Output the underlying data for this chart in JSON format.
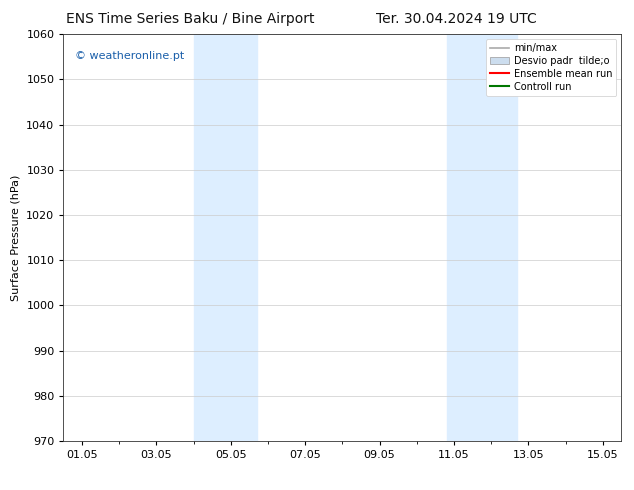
{
  "title_left": "ENS Time Series Baku / Bine Airport",
  "title_right": "Ter. 30.04.2024 19 UTC",
  "ylabel": "Surface Pressure (hPa)",
  "ylim": [
    970,
    1060
  ],
  "yticks": [
    970,
    980,
    990,
    1000,
    1010,
    1020,
    1030,
    1040,
    1050,
    1060
  ],
  "xlim_start": 0.5,
  "xlim_end": 15.5,
  "xtick_positions": [
    1,
    3,
    5,
    7,
    9,
    11,
    13,
    15
  ],
  "xtick_labels": [
    "01.05",
    "03.05",
    "05.05",
    "07.05",
    "09.05",
    "11.05",
    "13.05",
    "15.05"
  ],
  "shaded_bands": [
    {
      "x_start": 4.0,
      "x_end": 5.7
    },
    {
      "x_start": 10.8,
      "x_end": 12.7
    }
  ],
  "shaded_band_color": "#ddeeff",
  "watermark_text": "© weatheronline.pt",
  "watermark_color": "#1a5faa",
  "legend_entries": [
    {
      "label": "min/max",
      "color": "#aaaaaa",
      "lw": 1.2,
      "linestyle": "-",
      "type": "line"
    },
    {
      "label": "Desvio padr  tilde;o",
      "color": "#ccddee",
      "lw": 6,
      "linestyle": "-",
      "type": "patch"
    },
    {
      "label": "Ensemble mean run",
      "color": "#ff0000",
      "lw": 1.5,
      "linestyle": "-",
      "type": "line"
    },
    {
      "label": "Controll run",
      "color": "#007700",
      "lw": 1.5,
      "linestyle": "-",
      "type": "line"
    }
  ],
  "bg_color": "#ffffff",
  "grid_color": "#cccccc",
  "title_fontsize": 10,
  "axis_label_fontsize": 8,
  "tick_fontsize": 8,
  "legend_fontsize": 7
}
